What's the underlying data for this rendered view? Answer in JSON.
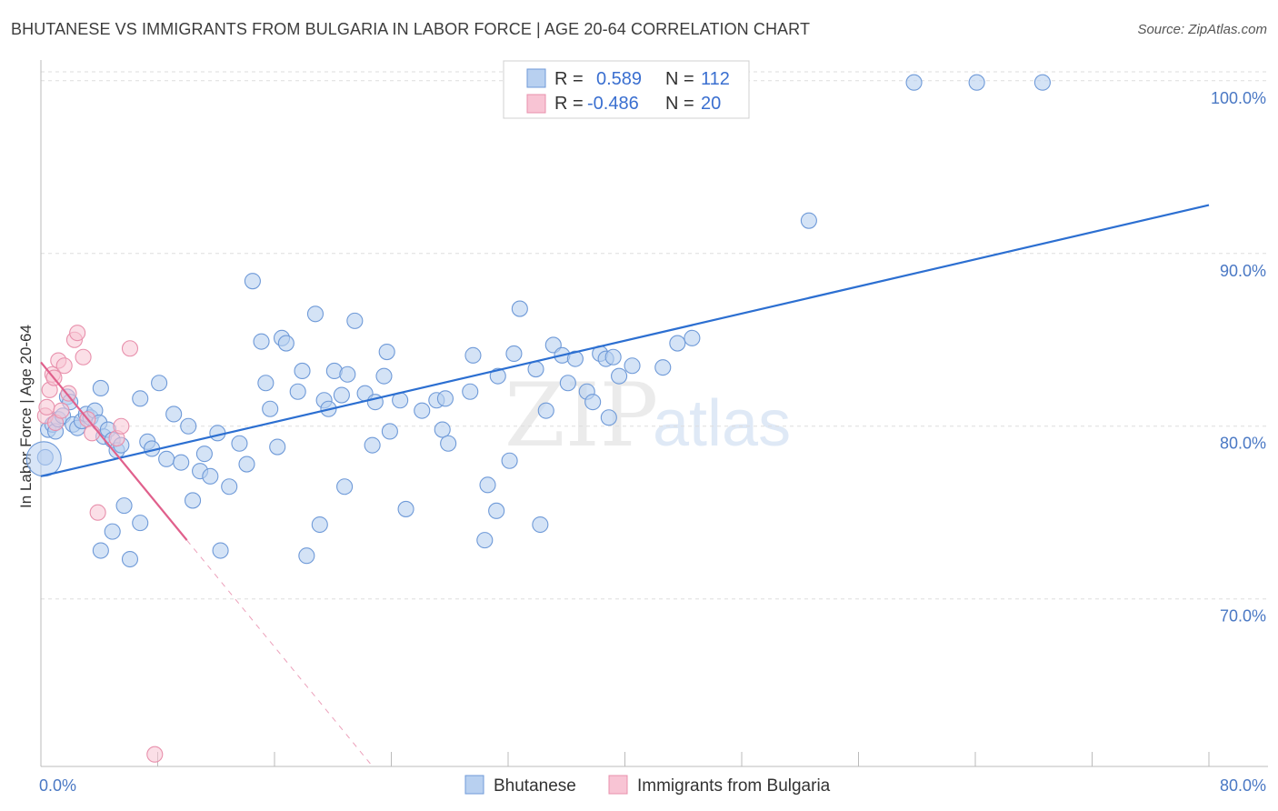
{
  "header": {
    "title": "BHUTANESE VS IMMIGRANTS FROM BULGARIA IN LABOR FORCE | AGE 20-64 CORRELATION CHART",
    "source": "Source: ZipAtlas.com"
  },
  "watermark": {
    "zip": "ZIP",
    "atlas": "atlas"
  },
  "colors": {
    "blue_fill": "#b8d0f0",
    "blue_stroke": "#6f9ad8",
    "blue_line": "#2c6fd1",
    "pink_fill": "#f8c4d4",
    "pink_stroke": "#e890ac",
    "pink_line": "#e0608c",
    "grid": "#dddddd",
    "axis_label": "#4a78c4"
  },
  "legend": {
    "rows": [
      {
        "r_label": "R =",
        "r_value": "0.589",
        "n_label": "N =",
        "n_value": "112"
      },
      {
        "r_label": "R =",
        "r_value": "-0.486",
        "n_label": "N =",
        "n_value": "20"
      }
    ]
  },
  "chart_data": {
    "type": "scatter",
    "title": "BHUTANESE VS IMMIGRANTS FROM BULGARIA IN LABOR FORCE | AGE 20-64 CORRELATION CHART",
    "xlabel": "",
    "ylabel": "In Labor Force | Age 20-64",
    "xlim": [
      0,
      80
    ],
    "ylim": [
      60.3,
      101.2
    ],
    "x_tick_labels": [
      "0.0%",
      "80.0%"
    ],
    "y_ticks": [
      70,
      80,
      90,
      100
    ],
    "y_tick_labels": [
      "70.0%",
      "80.0%",
      "90.0%",
      "100.0%"
    ],
    "series": [
      {
        "name": "Bhutanese",
        "r": 0.589,
        "n": 112,
        "trend": {
          "x": [
            0,
            80
          ],
          "y": [
            77.1,
            92.8
          ]
        },
        "points": [
          [
            0.3,
            78.2
          ],
          [
            0.5,
            79.8
          ],
          [
            0.8,
            80.1
          ],
          [
            1.0,
            79.7
          ],
          [
            1.2,
            80.4
          ],
          [
            1.5,
            80.6
          ],
          [
            1.8,
            81.7
          ],
          [
            2.0,
            81.4
          ],
          [
            2.2,
            80.1
          ],
          [
            2.5,
            79.9
          ],
          [
            2.8,
            80.3
          ],
          [
            3.1,
            80.7
          ],
          [
            3.4,
            80.5
          ],
          [
            3.7,
            80.9
          ],
          [
            4.0,
            80.2
          ],
          [
            4.3,
            79.4
          ],
          [
            4.6,
            79.8
          ],
          [
            4.9,
            79.2
          ],
          [
            5.2,
            78.6
          ],
          [
            5.5,
            78.9
          ],
          [
            4.1,
            82.2
          ],
          [
            5.7,
            75.4
          ],
          [
            4.9,
            73.9
          ],
          [
            4.1,
            72.8
          ],
          [
            6.1,
            72.3
          ],
          [
            6.8,
            74.4
          ],
          [
            6.8,
            81.6
          ],
          [
            7.3,
            79.1
          ],
          [
            7.6,
            78.7
          ],
          [
            8.1,
            82.5
          ],
          [
            8.6,
            78.1
          ],
          [
            9.1,
            80.7
          ],
          [
            9.6,
            77.9
          ],
          [
            10.1,
            80.0
          ],
          [
            10.4,
            75.7
          ],
          [
            10.9,
            77.4
          ],
          [
            11.2,
            78.4
          ],
          [
            11.6,
            77.1
          ],
          [
            12.1,
            79.6
          ],
          [
            12.3,
            72.8
          ],
          [
            12.9,
            76.5
          ],
          [
            13.6,
            79.0
          ],
          [
            14.1,
            77.8
          ],
          [
            14.5,
            88.4
          ],
          [
            15.1,
            84.9
          ],
          [
            15.4,
            82.5
          ],
          [
            15.7,
            81.0
          ],
          [
            16.2,
            78.8
          ],
          [
            16.5,
            85.1
          ],
          [
            16.8,
            84.8
          ],
          [
            17.6,
            82.0
          ],
          [
            17.9,
            83.2
          ],
          [
            18.2,
            72.5
          ],
          [
            18.8,
            86.5
          ],
          [
            19.4,
            81.5
          ],
          [
            19.1,
            74.3
          ],
          [
            19.7,
            81.0
          ],
          [
            20.1,
            83.2
          ],
          [
            20.6,
            81.8
          ],
          [
            20.8,
            76.5
          ],
          [
            21.0,
            83.0
          ],
          [
            21.5,
            86.1
          ],
          [
            22.2,
            81.9
          ],
          [
            22.7,
            78.9
          ],
          [
            22.9,
            81.4
          ],
          [
            23.5,
            82.9
          ],
          [
            23.7,
            84.3
          ],
          [
            23.9,
            79.7
          ],
          [
            24.6,
            81.5
          ],
          [
            25.0,
            75.2
          ],
          [
            26.1,
            80.9
          ],
          [
            27.1,
            81.5
          ],
          [
            27.5,
            79.8
          ],
          [
            27.7,
            81.6
          ],
          [
            27.9,
            79.0
          ],
          [
            29.4,
            82.0
          ],
          [
            29.6,
            84.1
          ],
          [
            30.4,
            73.4
          ],
          [
            30.6,
            76.6
          ],
          [
            31.2,
            75.1
          ],
          [
            31.3,
            82.9
          ],
          [
            32.1,
            78.0
          ],
          [
            32.4,
            84.2
          ],
          [
            32.8,
            86.8
          ],
          [
            33.9,
            83.3
          ],
          [
            34.2,
            74.3
          ],
          [
            34.6,
            80.9
          ],
          [
            35.1,
            84.7
          ],
          [
            35.7,
            84.1
          ],
          [
            36.1,
            82.5
          ],
          [
            36.6,
            83.9
          ],
          [
            37.4,
            82.0
          ],
          [
            37.8,
            81.4
          ],
          [
            38.3,
            84.2
          ],
          [
            38.7,
            83.9
          ],
          [
            38.9,
            80.5
          ],
          [
            39.2,
            84.0
          ],
          [
            39.6,
            82.9
          ],
          [
            40.5,
            83.5
          ],
          [
            42.6,
            83.4
          ],
          [
            43.6,
            84.8
          ],
          [
            44.6,
            85.1
          ],
          [
            52.6,
            91.9
          ],
          [
            59.8,
            99.9
          ],
          [
            64.1,
            99.9
          ],
          [
            68.6,
            99.9
          ]
        ]
      },
      {
        "name": "Immigrants from Bulgaria",
        "r": -0.486,
        "n": 20,
        "trend": {
          "x": [
            0,
            10
          ],
          "y": [
            83.7,
            73.4
          ]
        },
        "points": [
          [
            0.3,
            80.6
          ],
          [
            0.4,
            81.1
          ],
          [
            0.6,
            82.1
          ],
          [
            0.8,
            83.0
          ],
          [
            0.9,
            82.8
          ],
          [
            1.2,
            83.8
          ],
          [
            1.6,
            83.5
          ],
          [
            1.9,
            81.9
          ],
          [
            2.3,
            85.0
          ],
          [
            2.5,
            85.4
          ],
          [
            2.9,
            84.0
          ],
          [
            3.2,
            80.4
          ],
          [
            3.5,
            79.6
          ],
          [
            3.9,
            75.0
          ],
          [
            5.2,
            79.3
          ],
          [
            5.5,
            80.0
          ],
          [
            6.1,
            84.5
          ],
          [
            1.0,
            80.2
          ],
          [
            1.4,
            80.9
          ],
          [
            7.8,
            61.0
          ]
        ]
      }
    ]
  },
  "bottom_legend": {
    "items": [
      {
        "label": "Bhutanese"
      },
      {
        "label": "Immigrants from Bulgaria"
      }
    ]
  }
}
